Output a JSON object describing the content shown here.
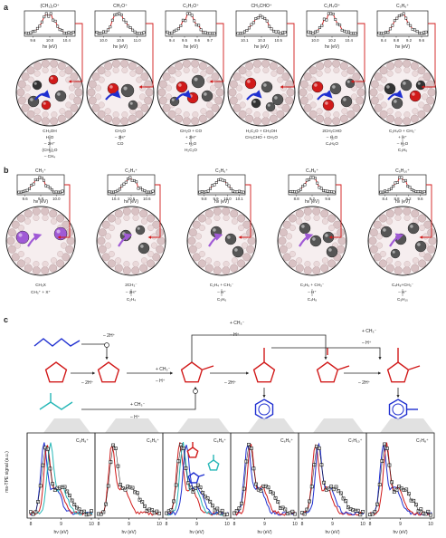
{
  "panel_labels": {
    "a": "a",
    "b": "b",
    "c": "c"
  },
  "axis_label_hv": "hν (eV)",
  "c_ylabel": "ms-TPE signal (a.u.)",
  "colors": {
    "red": "#d11a1a",
    "blue": "#1f2fd0",
    "cyan": "#27b7b7",
    "purple": "#a05ad6",
    "gray": "#666666"
  },
  "panel_a": {
    "ions": [
      "(CH₃)₂O⁺",
      "CH₂O⁺",
      "C₂H₂O⁺",
      "CH₃CHO⁺",
      "C₂H₄O⁺",
      "C₃H₆⁺"
    ],
    "ticks": [
      [
        "9.6",
        "10.0",
        "10.4"
      ],
      [
        "10.0",
        "10.5",
        "11.0"
      ],
      [
        "9.4",
        "9.5",
        "9.6",
        "9.7"
      ],
      [
        "10.1",
        "10.3",
        "10.5"
      ],
      [
        "10.0",
        "10.2",
        "10.4"
      ],
      [
        "8.4",
        "8.8",
        "9.2",
        "9.6"
      ]
    ],
    "reactions": [
      [
        "CH₃OH",
        "H₂O",
        "– 2H⁺",
        "(CH₃)₂O",
        "– CH₄"
      ],
      [
        "CH₂O",
        "– 2H⁺",
        "CO"
      ],
      [
        "CH₂O + CO",
        "+ 2H⁺",
        "– H₂O",
        "H₂C₂O"
      ],
      [
        "H₂C₂O + CH₃OH",
        "CH₃CHO + CH₂O"
      ],
      [
        "2CH₃CHO",
        "– H₂O",
        "C₄H₆O"
      ],
      [
        "C₂H₄O + CH₃⁻",
        "+ H⁺",
        "– H₂O",
        "C₃H₆"
      ]
    ]
  },
  "panel_b": {
    "ions": [
      "CH₃⁺",
      "C₂H₄⁺",
      "C₃H₆⁺",
      "C₄H₈⁺",
      "C₅H₁₀⁺"
    ],
    "ticks": [
      [
        "9.6",
        "9.8",
        "10.0"
      ],
      [
        "10.4",
        "10.5",
        "10.6"
      ],
      [
        "9.8",
        "9.9",
        "10.0",
        "10.1"
      ],
      [
        "8.8",
        "9.2",
        "9.6"
      ],
      [
        "8.4",
        "8.8",
        "9.2",
        "9.6"
      ]
    ],
    "reactions": [
      [
        "CH₃X",
        "CH₃⁺ + X⁺"
      ],
      [
        "2CH₃⁻",
        "– 2H⁺",
        "C₂H₄"
      ],
      [
        "C₂H₄ + CH₃⁻",
        "– H⁺",
        "C₃H₆"
      ],
      [
        "C₃H₆ + CH₃⁻",
        "– H⁺",
        "C₄H₈"
      ],
      [
        "C₄H₈+CH₃⁻",
        "– H⁺",
        "C₅H₁₀"
      ]
    ]
  },
  "panel_c": {
    "scheme_labels": {
      "h2_top": "– 2H⁺",
      "h2_bottom": "– 2H⁺",
      "ch3_a": "+ CH₃⁻",
      "h_a": "– H⁺",
      "ch3_top": "+ CH₃⁻",
      "h_top": "– H⁺",
      "h2_mid": "– 2H⁺",
      "ch3_right": "+ CH₃⁻",
      "h_right": "– H⁺",
      "h2_right": "– 2H⁺",
      "ch3_iso": "+ CH₃⁻",
      "h_iso": "– H⁺"
    },
    "spectra": [
      {
        "ion": "C₅H₈⁺",
        "ticks": [
          "8",
          "9",
          "10"
        ]
      },
      {
        "ion": "C₅H₆⁺",
        "ticks": [
          "8",
          "9",
          "10"
        ]
      },
      {
        "ion": "C₆H₈⁺",
        "ticks": [
          "8",
          "9",
          "10"
        ]
      },
      {
        "ion": "C₆H₆⁺",
        "ticks": [
          "8",
          "9",
          "10"
        ]
      },
      {
        "ion": "C₇H₁₀⁺",
        "ticks": [
          "8",
          "9",
          "10"
        ]
      },
      {
        "ion": "C₇H₈⁺",
        "ticks": [
          "8",
          "9",
          "10"
        ]
      }
    ]
  }
}
